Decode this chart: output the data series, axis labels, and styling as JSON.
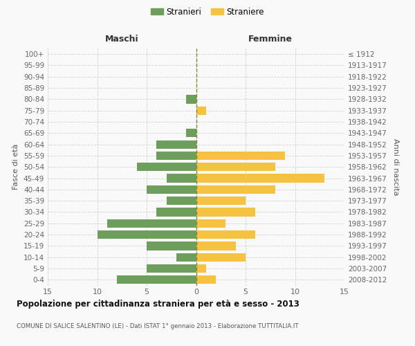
{
  "age_groups": [
    "100+",
    "95-99",
    "90-94",
    "85-89",
    "80-84",
    "75-79",
    "70-74",
    "65-69",
    "60-64",
    "55-59",
    "50-54",
    "45-49",
    "40-44",
    "35-39",
    "30-34",
    "25-29",
    "20-24",
    "15-19",
    "10-14",
    "5-9",
    "0-4"
  ],
  "birth_years": [
    "≤ 1912",
    "1913-1917",
    "1918-1922",
    "1923-1927",
    "1928-1932",
    "1933-1937",
    "1938-1942",
    "1943-1947",
    "1948-1952",
    "1953-1957",
    "1958-1962",
    "1963-1967",
    "1968-1972",
    "1973-1977",
    "1978-1982",
    "1983-1987",
    "1988-1992",
    "1993-1997",
    "1998-2002",
    "2003-2007",
    "2008-2012"
  ],
  "males": [
    0,
    0,
    0,
    0,
    1,
    0,
    0,
    1,
    4,
    4,
    6,
    3,
    5,
    3,
    4,
    9,
    10,
    5,
    2,
    5,
    8
  ],
  "females": [
    0,
    0,
    0,
    0,
    0,
    1,
    0,
    0,
    0,
    9,
    8,
    13,
    8,
    5,
    6,
    3,
    6,
    4,
    5,
    1,
    2
  ],
  "male_color": "#6d9e5b",
  "female_color": "#f5c242",
  "male_label": "Stranieri",
  "female_label": "Straniere",
  "title": "Popolazione per cittadinanza straniera per età e sesso - 2013",
  "subtitle": "COMUNE DI SALICE SALENTINO (LE) - Dati ISTAT 1° gennaio 2013 - Elaborazione TUTTITALIA.IT",
  "left_header": "Maschi",
  "right_header": "Femmine",
  "left_axis_label": "Fasce di età",
  "right_axis_label": "Anni di nascita",
  "xlim": 15,
  "background_color": "#f9f9f9",
  "grid_color": "#cccccc"
}
